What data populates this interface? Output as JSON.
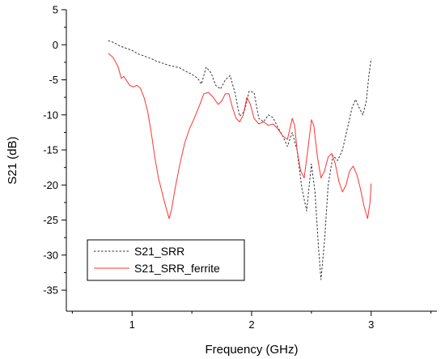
{
  "chart_data": {
    "type": "line",
    "title": "",
    "xlabel": "Frequency (GHz)",
    "ylabel": "S21 (dB)",
    "xlim": [
      0.45,
      3.55
    ],
    "ylim": [
      -38,
      5
    ],
    "xticks": [
      1,
      2,
      3
    ],
    "yticks": [
      5,
      0,
      -5,
      -10,
      -15,
      -20,
      -25,
      -30,
      -35
    ],
    "xtick_labels": [
      "1",
      "2",
      "3"
    ],
    "ytick_labels": [
      "5",
      "0",
      "-5",
      "-10",
      "-15",
      "-20",
      "-25",
      "-30",
      "-35"
    ],
    "grid": false,
    "legend_position": "bottom-left",
    "series": [
      {
        "name": "S21_SRR",
        "color": "#333333",
        "style": "dashed",
        "points": [
          [
            0.8,
            0.6
          ],
          [
            0.85,
            0.3
          ],
          [
            0.9,
            -0.2
          ],
          [
            0.95,
            -0.5
          ],
          [
            1.0,
            -0.8
          ],
          [
            1.05,
            -1.3
          ],
          [
            1.1,
            -1.6
          ],
          [
            1.15,
            -1.9
          ],
          [
            1.2,
            -2.3
          ],
          [
            1.25,
            -2.6
          ],
          [
            1.3,
            -2.9
          ],
          [
            1.35,
            -3.1
          ],
          [
            1.4,
            -3.3
          ],
          [
            1.45,
            -3.8
          ],
          [
            1.5,
            -4.2
          ],
          [
            1.55,
            -4.8
          ],
          [
            1.58,
            -5.6
          ],
          [
            1.62,
            -3.2
          ],
          [
            1.66,
            -4.0
          ],
          [
            1.7,
            -5.8
          ],
          [
            1.74,
            -6.3
          ],
          [
            1.78,
            -5.0
          ],
          [
            1.82,
            -4.4
          ],
          [
            1.86,
            -6.8
          ],
          [
            1.9,
            -10.2
          ],
          [
            1.94,
            -9.5
          ],
          [
            1.98,
            -6.6
          ],
          [
            2.02,
            -6.8
          ],
          [
            2.06,
            -10.5
          ],
          [
            2.1,
            -11.0
          ],
          [
            2.14,
            -10.0
          ],
          [
            2.18,
            -10.4
          ],
          [
            2.22,
            -11.8
          ],
          [
            2.26,
            -13.0
          ],
          [
            2.3,
            -14.5
          ],
          [
            2.34,
            -12.5
          ],
          [
            2.38,
            -15.0
          ],
          [
            2.42,
            -20.5
          ],
          [
            2.46,
            -23.7
          ],
          [
            2.5,
            -17.0
          ],
          [
            2.53,
            -21.0
          ],
          [
            2.56,
            -29.0
          ],
          [
            2.58,
            -33.5
          ],
          [
            2.61,
            -28.0
          ],
          [
            2.64,
            -20.0
          ],
          [
            2.68,
            -15.8
          ],
          [
            2.72,
            -16.5
          ],
          [
            2.76,
            -15.0
          ],
          [
            2.8,
            -12.0
          ],
          [
            2.84,
            -9.0
          ],
          [
            2.87,
            -7.8
          ],
          [
            2.9,
            -9.0
          ],
          [
            2.93,
            -10.0
          ],
          [
            2.96,
            -8.0
          ],
          [
            2.98,
            -4.5
          ],
          [
            3.0,
            -2.0
          ]
        ]
      },
      {
        "name": "S21_SRR_ferrite",
        "color": "#ff3333",
        "style": "solid",
        "points": [
          [
            0.8,
            -1.2
          ],
          [
            0.84,
            -1.8
          ],
          [
            0.88,
            -3.0
          ],
          [
            0.91,
            -4.8
          ],
          [
            0.93,
            -4.5
          ],
          [
            0.95,
            -5.0
          ],
          [
            0.98,
            -5.8
          ],
          [
            1.01,
            -6.0
          ],
          [
            1.04,
            -5.8
          ],
          [
            1.07,
            -6.2
          ],
          [
            1.1,
            -7.5
          ],
          [
            1.13,
            -9.5
          ],
          [
            1.16,
            -12.5
          ],
          [
            1.19,
            -16.0
          ],
          [
            1.22,
            -19.0
          ],
          [
            1.25,
            -21.0
          ],
          [
            1.28,
            -23.0
          ],
          [
            1.31,
            -24.8
          ],
          [
            1.33,
            -23.5
          ],
          [
            1.36,
            -20.5
          ],
          [
            1.4,
            -17.0
          ],
          [
            1.44,
            -14.0
          ],
          [
            1.48,
            -12.0
          ],
          [
            1.52,
            -10.5
          ],
          [
            1.56,
            -8.8
          ],
          [
            1.6,
            -7.0
          ],
          [
            1.64,
            -6.8
          ],
          [
            1.68,
            -7.5
          ],
          [
            1.72,
            -8.5
          ],
          [
            1.75,
            -8.0
          ],
          [
            1.78,
            -7.0
          ],
          [
            1.81,
            -7.0
          ],
          [
            1.84,
            -9.0
          ],
          [
            1.87,
            -10.5
          ],
          [
            1.9,
            -11.0
          ],
          [
            1.93,
            -10.0
          ],
          [
            1.96,
            -7.5
          ],
          [
            1.99,
            -8.5
          ],
          [
            2.02,
            -10.5
          ],
          [
            2.06,
            -11.3
          ],
          [
            2.1,
            -11.0
          ],
          [
            2.14,
            -11.5
          ],
          [
            2.18,
            -11.3
          ],
          [
            2.22,
            -12.0
          ],
          [
            2.26,
            -13.0
          ],
          [
            2.3,
            -13.5
          ],
          [
            2.34,
            -10.5
          ],
          [
            2.36,
            -11.5
          ],
          [
            2.38,
            -15.0
          ],
          [
            2.41,
            -18.0
          ],
          [
            2.44,
            -19.0
          ],
          [
            2.47,
            -15.0
          ],
          [
            2.5,
            -10.7
          ],
          [
            2.52,
            -11.5
          ],
          [
            2.55,
            -16.0
          ],
          [
            2.58,
            -19.0
          ],
          [
            2.61,
            -18.0
          ],
          [
            2.64,
            -16.0
          ],
          [
            2.67,
            -15.5
          ],
          [
            2.7,
            -17.0
          ],
          [
            2.73,
            -19.5
          ],
          [
            2.76,
            -21.0
          ],
          [
            2.79,
            -20.0
          ],
          [
            2.82,
            -18.0
          ],
          [
            2.85,
            -17.3
          ],
          [
            2.88,
            -18.5
          ],
          [
            2.91,
            -20.5
          ],
          [
            2.94,
            -23.0
          ],
          [
            2.97,
            -24.8
          ],
          [
            2.99,
            -22.5
          ],
          [
            3.0,
            -19.8
          ]
        ]
      }
    ]
  }
}
